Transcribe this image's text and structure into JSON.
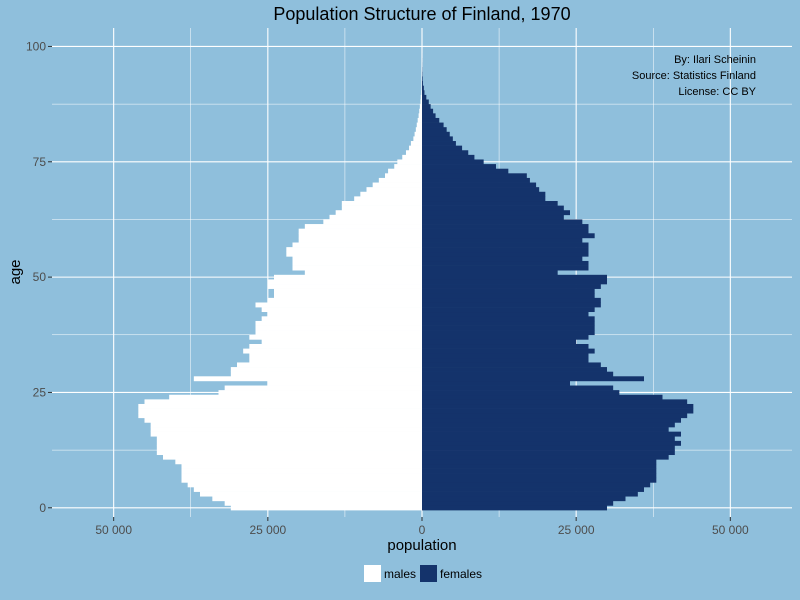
{
  "chart_data": {
    "type": "bar",
    "orientation": "horizontal-pyramid",
    "title": "Population Structure of Finland, 1970",
    "xlabel": "population",
    "ylabel": "age",
    "xlim": [
      -60000,
      60000
    ],
    "ylim": [
      -2,
      104
    ],
    "x_ticks": [
      -50000,
      -25000,
      0,
      25000,
      50000
    ],
    "x_tick_labels": [
      "50 000",
      "25 000",
      "0",
      "25 000",
      "50 000"
    ],
    "y_ticks": [
      0,
      25,
      50,
      75,
      100
    ],
    "y_tick_labels": [
      "0",
      "25",
      "50",
      "75",
      "100"
    ],
    "grid": true,
    "legend_position": "bottom",
    "annotations": [
      "By: Ilari Scheinin",
      "Source: Statistics Finland",
      "License: CC BY"
    ],
    "colors": {
      "background": "#8fbfdc",
      "males": "#ffffff",
      "females": "#14336b",
      "grid": "#ffffff"
    },
    "ages": [
      0,
      1,
      2,
      3,
      4,
      5,
      6,
      7,
      8,
      9,
      10,
      11,
      12,
      13,
      14,
      15,
      16,
      17,
      18,
      19,
      20,
      21,
      22,
      23,
      24,
      25,
      26,
      27,
      28,
      29,
      30,
      31,
      32,
      33,
      34,
      35,
      36,
      37,
      38,
      39,
      40,
      41,
      42,
      43,
      44,
      45,
      46,
      47,
      48,
      49,
      50,
      51,
      52,
      53,
      54,
      55,
      56,
      57,
      58,
      59,
      60,
      61,
      62,
      63,
      64,
      65,
      66,
      67,
      68,
      69,
      70,
      71,
      72,
      73,
      74,
      75,
      76,
      77,
      78,
      79,
      80,
      81,
      82,
      83,
      84,
      85,
      86,
      87,
      88,
      89,
      90,
      91,
      92,
      93,
      94,
      95,
      96,
      97,
      98,
      99,
      100
    ],
    "series": [
      {
        "name": "males",
        "values": [
          31000,
          32000,
          34000,
          36000,
          37000,
          38000,
          39000,
          39000,
          39000,
          39000,
          40000,
          42000,
          43000,
          43000,
          43000,
          43000,
          44000,
          44000,
          44000,
          45000,
          46000,
          46000,
          46000,
          45000,
          41000,
          33000,
          32000,
          25000,
          37000,
          31000,
          31000,
          30000,
          28000,
          28000,
          29000,
          28000,
          26000,
          28000,
          27000,
          27000,
          27000,
          26000,
          25000,
          26000,
          27000,
          25000,
          24000,
          24000,
          25000,
          25000,
          24000,
          19000,
          21000,
          21000,
          21000,
          22000,
          22000,
          21000,
          20000,
          20000,
          20000,
          19000,
          16000,
          15000,
          14000,
          13000,
          13000,
          11000,
          10000,
          9000,
          8000,
          7000,
          6000,
          5500,
          4500,
          4000,
          3200,
          2600,
          2100,
          1800,
          1400,
          1200,
          1000,
          850,
          700,
          550,
          450,
          350,
          250,
          200,
          120,
          80,
          50,
          30,
          20,
          10,
          5,
          3,
          2,
          1,
          0
        ]
      },
      {
        "name": "females",
        "values": [
          30000,
          31000,
          33000,
          35000,
          36000,
          37000,
          38000,
          38000,
          38000,
          38000,
          38000,
          40000,
          41000,
          41000,
          42000,
          41000,
          42000,
          40000,
          41000,
          42000,
          43000,
          44000,
          44000,
          43000,
          39000,
          32000,
          31000,
          24000,
          36000,
          31000,
          30000,
          29000,
          27000,
          27000,
          28000,
          27000,
          25000,
          27000,
          28000,
          28000,
          28000,
          28000,
          27000,
          28000,
          29000,
          29000,
          28000,
          28000,
          29000,
          30000,
          30000,
          22000,
          27000,
          27000,
          26000,
          27000,
          27000,
          27000,
          26000,
          28000,
          27000,
          27000,
          26000,
          23000,
          24000,
          23000,
          22000,
          20000,
          20000,
          19000,
          18500,
          17500,
          17000,
          14000,
          12000,
          10000,
          8500,
          7500,
          6500,
          5500,
          5000,
          4500,
          4000,
          3500,
          2800,
          2200,
          1800,
          1400,
          1100,
          700,
          400,
          300,
          150,
          100,
          50,
          30,
          15,
          8,
          4,
          2,
          0
        ]
      }
    ]
  }
}
